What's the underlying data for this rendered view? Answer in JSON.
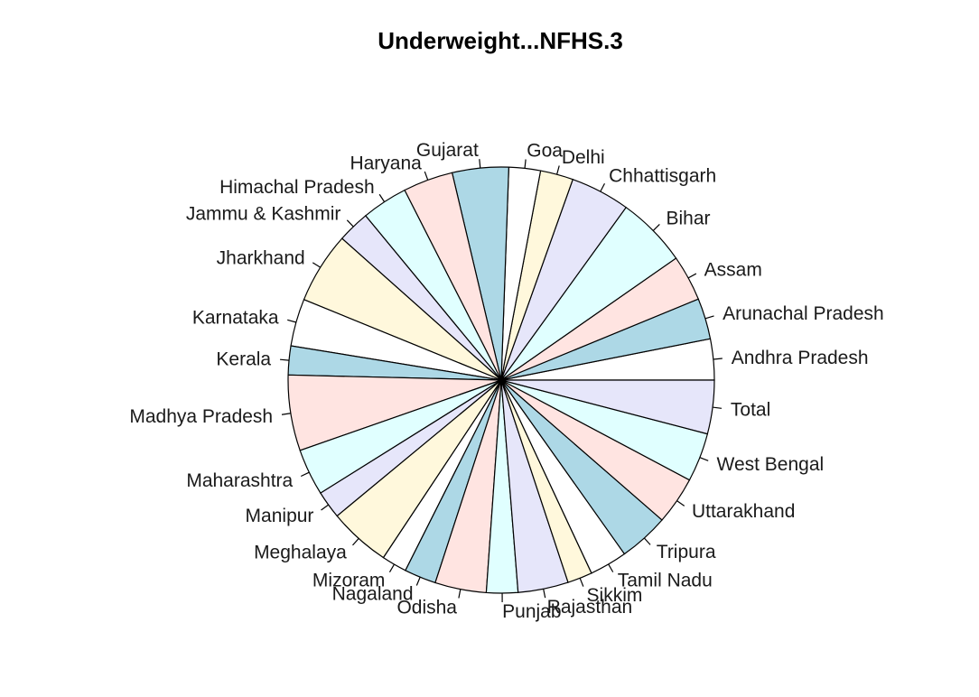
{
  "chart_data": {
    "type": "pie",
    "title": "Underweight...NFHS.3",
    "start": "3 o'clock",
    "direction": "counterclockwise",
    "colors": [
      "#ffffff",
      "#add8e6",
      "#ffe4e1",
      "#e0ffff",
      "#e6e6fa",
      "#fff8dc"
    ],
    "slices": [
      {
        "label": "Andhra Pradesh",
        "value": 32.5
      },
      {
        "label": "Arunachal Pradesh",
        "value": 32.5
      },
      {
        "label": "Assam",
        "value": 36.4
      },
      {
        "label": "Bihar",
        "value": 55.9
      },
      {
        "label": "Chhattisgarh",
        "value": 47.1
      },
      {
        "label": "Delhi",
        "value": 26.1
      },
      {
        "label": "Goa",
        "value": 25.0
      },
      {
        "label": "Gujarat",
        "value": 44.6
      },
      {
        "label": "Haryana",
        "value": 39.6
      },
      {
        "label": "Himachal Pradesh",
        "value": 36.5
      },
      {
        "label": "Jammu & Kashmir",
        "value": 25.6
      },
      {
        "label": "Jharkhand",
        "value": 56.5
      },
      {
        "label": "Karnataka",
        "value": 37.6
      },
      {
        "label": "Kerala",
        "value": 22.9
      },
      {
        "label": "Madhya Pradesh",
        "value": 60.0
      },
      {
        "label": "Maharashtra",
        "value": 37.0
      },
      {
        "label": "Manipur",
        "value": 22.1
      },
      {
        "label": "Meghalaya",
        "value": 48.8
      },
      {
        "label": "Mizoram",
        "value": 19.9
      },
      {
        "label": "Nagaland",
        "value": 25.2
      },
      {
        "label": "Odisha",
        "value": 40.7
      },
      {
        "label": "Punjab",
        "value": 24.9
      },
      {
        "label": "Rajasthan",
        "value": 39.9
      },
      {
        "label": "Sikkim",
        "value": 19.7
      },
      {
        "label": "Tamil Nadu",
        "value": 29.8
      },
      {
        "label": "Tripura",
        "value": 39.6
      },
      {
        "label": "Uttarakhand",
        "value": 38.0
      },
      {
        "label": "West Bengal",
        "value": 38.7
      },
      {
        "label": "Total",
        "value": 42.5
      }
    ]
  }
}
